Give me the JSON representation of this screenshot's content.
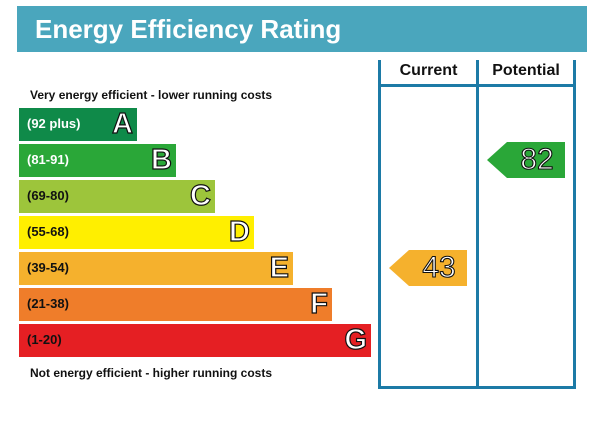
{
  "title": "Energy Efficiency Rating",
  "columns": {
    "current": "Current",
    "potential": "Potential"
  },
  "notes": {
    "top": "Very energy efficient - lower running costs",
    "bottom": "Not energy efficient - higher running costs"
  },
  "chart_data": {
    "type": "bar",
    "title": "Energy Efficiency Rating",
    "bands": [
      {
        "range": "(92 plus)",
        "letter": "A",
        "color": "#0f8a49",
        "text_color": "#ffffff"
      },
      {
        "range": "(81-91)",
        "letter": "B",
        "color": "#2aa738",
        "text_color": "#ffffff"
      },
      {
        "range": "(69-80)",
        "letter": "C",
        "color": "#9dc53b",
        "text_color": "#111111"
      },
      {
        "range": "(55-68)",
        "letter": "D",
        "color": "#ffef00",
        "text_color": "#111111"
      },
      {
        "range": "(39-54)",
        "letter": "E",
        "color": "#f5b12d",
        "text_color": "#111111"
      },
      {
        "range": "(21-38)",
        "letter": "F",
        "color": "#ef7d2a",
        "text_color": "#111111"
      },
      {
        "range": "(1-20)",
        "letter": "G",
        "color": "#e51f23",
        "text_color": "#111111"
      }
    ],
    "current": {
      "value": 43,
      "band": "E",
      "color": "#f5b12d"
    },
    "potential": {
      "value": 82,
      "band": "B",
      "color": "#2aa738"
    }
  }
}
